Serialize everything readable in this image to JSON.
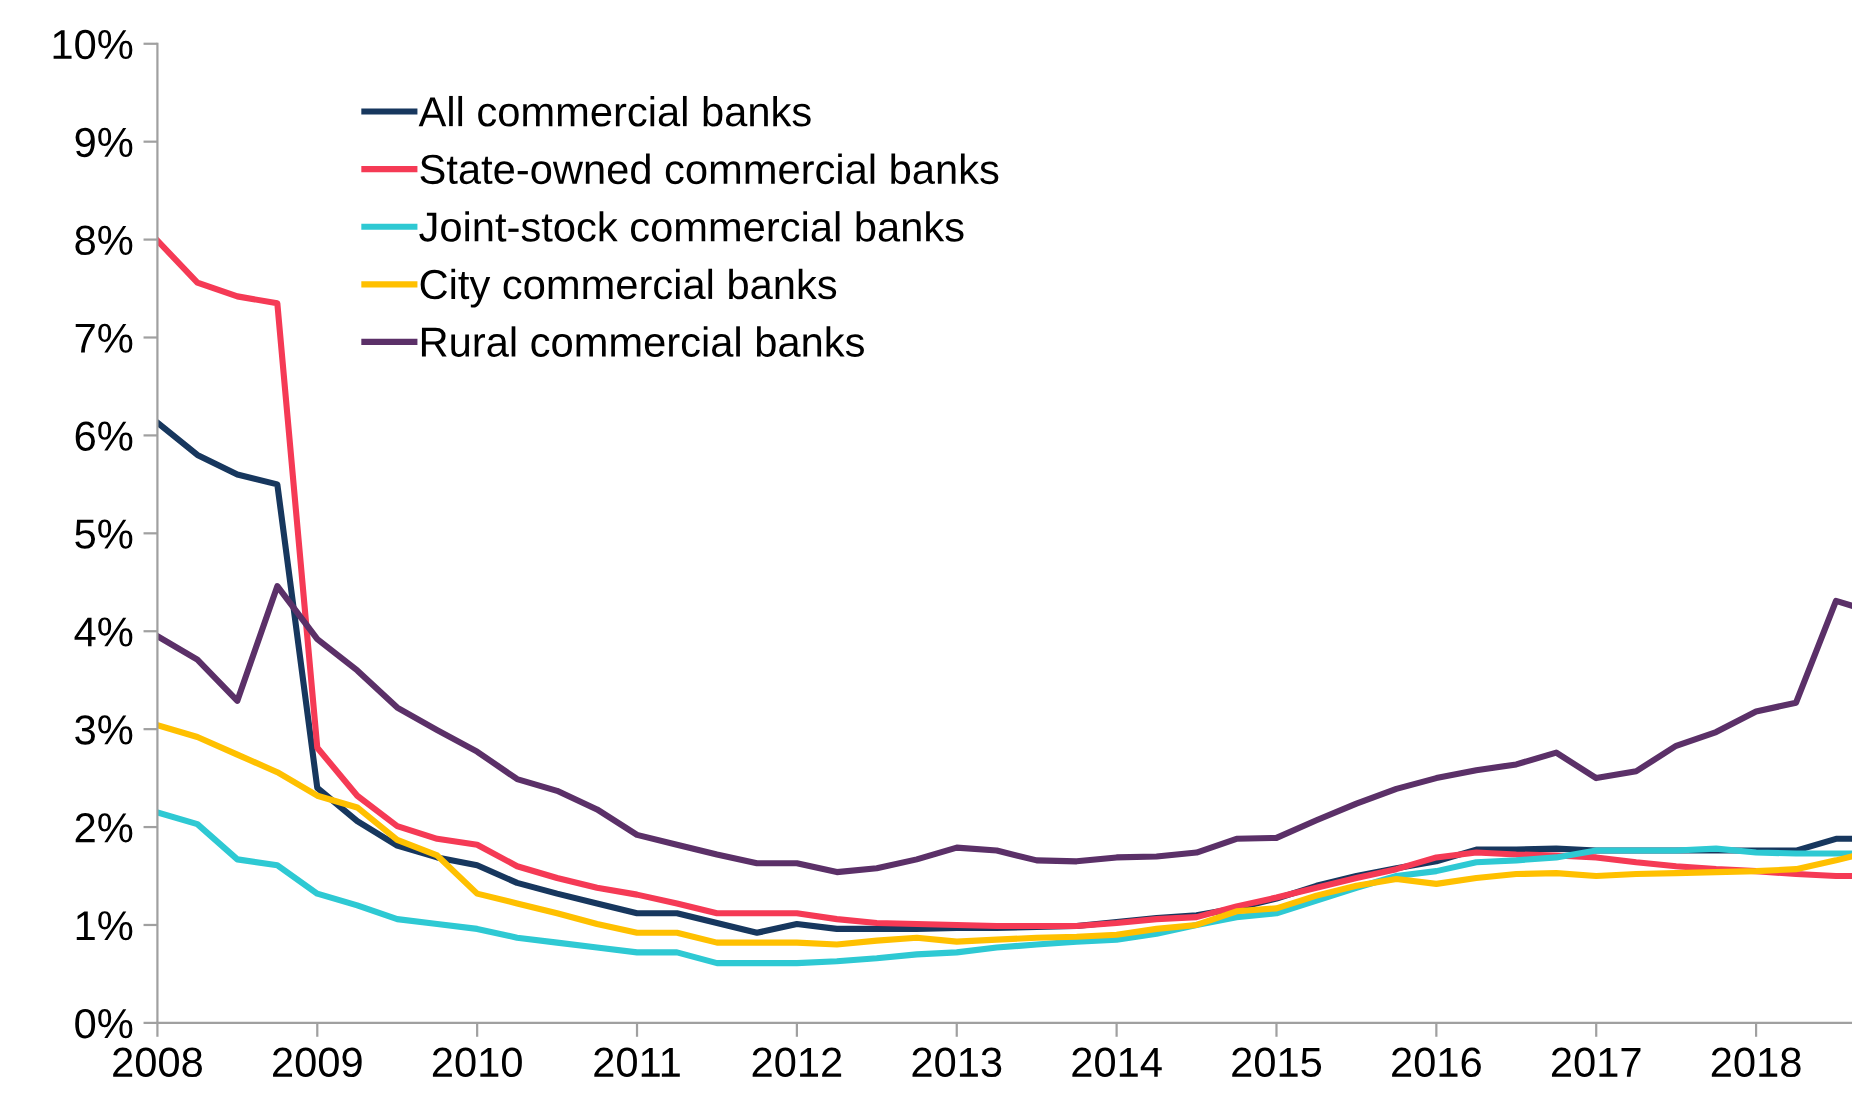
{
  "chart_data": {
    "type": "line",
    "x": [
      2008,
      2008.25,
      2008.5,
      2008.75,
      2009,
      2009.25,
      2009.5,
      2009.75,
      2010,
      2010.25,
      2010.5,
      2010.75,
      2011,
      2011.25,
      2011.5,
      2011.75,
      2012,
      2012.25,
      2012.5,
      2012.75,
      2013,
      2013.25,
      2013.5,
      2013.75,
      2014,
      2014.25,
      2014.5,
      2014.75,
      2015,
      2015.25,
      2015.5,
      2015.75,
      2016,
      2016.25,
      2016.5,
      2016.75,
      2017,
      2017.25,
      2017.5,
      2017.75,
      2018,
      2018.25,
      2018.5,
      2018.6
    ],
    "series": [
      {
        "name": "All commercial banks",
        "color": "#17375e",
        "values": [
          6.13,
          5.8,
          5.6,
          5.5,
          2.4,
          2.06,
          1.81,
          1.69,
          1.61,
          1.43,
          1.32,
          1.22,
          1.12,
          1.12,
          1.02,
          0.92,
          1.01,
          0.96,
          0.96,
          0.96,
          0.97,
          0.97,
          0.98,
          0.99,
          1.03,
          1.07,
          1.1,
          1.17,
          1.27,
          1.4,
          1.5,
          1.58,
          1.65,
          1.77,
          1.77,
          1.78,
          1.76,
          1.76,
          1.76,
          1.76,
          1.76,
          1.76,
          1.88,
          1.88
        ]
      },
      {
        "name": "State-owned commercial banks",
        "color": "#f53a55",
        "values": [
          7.99,
          7.56,
          7.42,
          7.35,
          2.81,
          2.32,
          2.01,
          1.88,
          1.82,
          1.6,
          1.48,
          1.38,
          1.31,
          1.22,
          1.12,
          1.12,
          1.12,
          1.06,
          1.02,
          1.01,
          1.0,
          0.99,
          0.99,
          0.99,
          1.02,
          1.06,
          1.08,
          1.19,
          1.28,
          1.38,
          1.48,
          1.57,
          1.69,
          1.74,
          1.72,
          1.71,
          1.69,
          1.64,
          1.6,
          1.57,
          1.55,
          1.52,
          1.5,
          1.5
        ]
      },
      {
        "name": "Joint-stock commercial banks",
        "color": "#2ec9d3",
        "values": [
          2.15,
          2.03,
          1.67,
          1.61,
          1.32,
          1.2,
          1.06,
          1.01,
          0.96,
          0.87,
          0.82,
          0.77,
          0.72,
          0.72,
          0.61,
          0.61,
          0.61,
          0.63,
          0.66,
          0.7,
          0.72,
          0.77,
          0.8,
          0.83,
          0.85,
          0.91,
          1.0,
          1.08,
          1.12,
          1.25,
          1.38,
          1.5,
          1.55,
          1.64,
          1.66,
          1.69,
          1.76,
          1.76,
          1.76,
          1.78,
          1.74,
          1.73,
          1.73,
          1.73
        ]
      },
      {
        "name": "City commercial banks",
        "color": "#ffc000",
        "values": [
          3.04,
          2.92,
          2.74,
          2.56,
          2.32,
          2.2,
          1.87,
          1.71,
          1.32,
          1.22,
          1.12,
          1.01,
          0.92,
          0.92,
          0.82,
          0.82,
          0.82,
          0.8,
          0.84,
          0.87,
          0.83,
          0.85,
          0.87,
          0.88,
          0.9,
          0.96,
          1.0,
          1.14,
          1.17,
          1.3,
          1.4,
          1.47,
          1.42,
          1.48,
          1.52,
          1.53,
          1.5,
          1.52,
          1.53,
          1.54,
          1.55,
          1.57,
          1.66,
          1.7
        ]
      },
      {
        "name": "Rural commercial banks",
        "color": "#5b3068",
        "values": [
          3.95,
          3.71,
          3.29,
          4.46,
          3.92,
          3.6,
          3.22,
          2.99,
          2.77,
          2.49,
          2.37,
          2.18,
          1.92,
          1.82,
          1.72,
          1.63,
          1.63,
          1.54,
          1.58,
          1.67,
          1.79,
          1.76,
          1.66,
          1.65,
          1.69,
          1.7,
          1.74,
          1.88,
          1.89,
          2.07,
          2.24,
          2.39,
          2.5,
          2.58,
          2.64,
          2.76,
          2.5,
          2.57,
          2.83,
          2.97,
          3.18,
          3.27,
          4.31,
          4.26
        ]
      }
    ],
    "xlim": [
      2008,
      2018.6
    ],
    "xticks": [
      2008,
      2009,
      2010,
      2011,
      2012,
      2013,
      2014,
      2015,
      2016,
      2017,
      2018
    ],
    "ylim": [
      0,
      10
    ],
    "yticks": [
      {
        "value": 0,
        "label": "0%"
      },
      {
        "value": 1,
        "label": "1%"
      },
      {
        "value": 2,
        "label": "2%"
      },
      {
        "value": 3,
        "label": "3%"
      },
      {
        "value": 4,
        "label": "4%"
      },
      {
        "value": 5,
        "label": "5%"
      },
      {
        "value": 6,
        "label": "6%"
      },
      {
        "value": 7,
        "label": "7%"
      },
      {
        "value": 8,
        "label": "8%"
      },
      {
        "value": 9,
        "label": "9%"
      },
      {
        "value": 10,
        "label": "10%"
      }
    ],
    "grid": false,
    "legend": "top left",
    "marker": "none",
    "line_style": "solid"
  }
}
